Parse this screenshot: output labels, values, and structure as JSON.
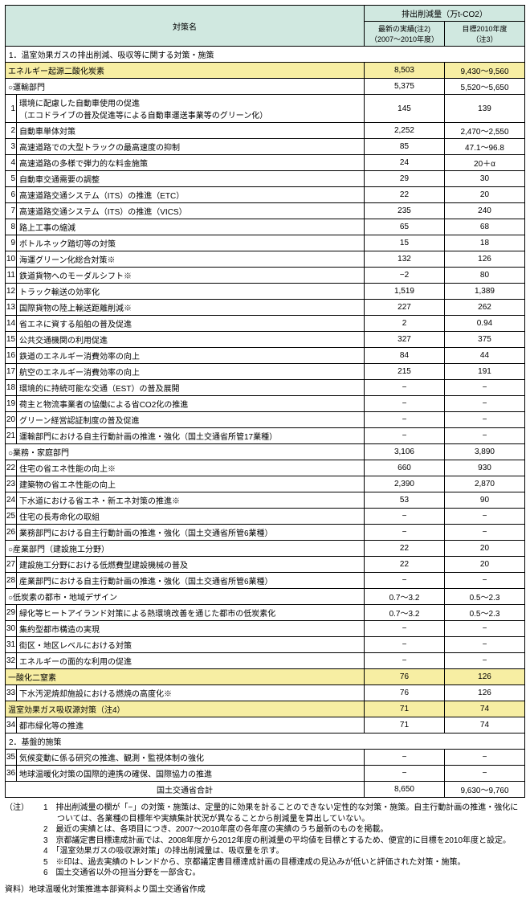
{
  "header": {
    "name_col": "対策名",
    "value_group": "排出削減量（万t-CO2）",
    "col_recent": "最新の実績(注2)\n（2007～2010年度）",
    "col_target": "目標2010年度\n（注3）"
  },
  "section1": "1．温室効果ガスの排出削減、吸収等に関する対策・施策",
  "groups": [
    {
      "type": "hl",
      "name": "エネルギー起源二酸化炭素",
      "recent": "8,503",
      "target": "9,430～9,560"
    },
    {
      "type": "sub",
      "name": "○運輸部門",
      "recent": "5,375",
      "target": "5,520～5,650"
    },
    {
      "num": "1",
      "name": "環境に配慮した自動車使用の促進\n（エコドライブの普及促進等による自動車運送事業等のグリーン化）",
      "recent": "145",
      "target": "139"
    },
    {
      "num": "2",
      "name": "自動車単体対策",
      "recent": "2,252",
      "target": "2,470～2,550"
    },
    {
      "num": "3",
      "name": "高速道路での大型トラックの最高速度の抑制",
      "recent": "85",
      "target": "47.1～96.8"
    },
    {
      "num": "4",
      "name": "高速道路の多様で弾力的な料金施策",
      "recent": "24",
      "target": "20＋α"
    },
    {
      "num": "5",
      "name": "自動車交通需要の調整",
      "recent": "29",
      "target": "30"
    },
    {
      "num": "6",
      "name": "高速道路交通システム（ITS）の推進（ETC）",
      "recent": "22",
      "target": "20"
    },
    {
      "num": "7",
      "name": "高速道路交通システム（ITS）の推進（VICS）",
      "recent": "235",
      "target": "240"
    },
    {
      "num": "8",
      "name": "路上工事の縮減",
      "recent": "65",
      "target": "68"
    },
    {
      "num": "9",
      "name": "ボトルネック踏切等の対策",
      "recent": "15",
      "target": "18"
    },
    {
      "num": "10",
      "name": "海運グリーン化総合対策※",
      "recent": "132",
      "target": "126"
    },
    {
      "num": "11",
      "name": "鉄道貨物へのモーダルシフト※",
      "recent": "−2",
      "target": "80"
    },
    {
      "num": "12",
      "name": "トラック輸送の効率化",
      "recent": "1,519",
      "target": "1,389"
    },
    {
      "num": "13",
      "name": "国際貨物の陸上輸送距離削減※",
      "recent": "227",
      "target": "262"
    },
    {
      "num": "14",
      "name": "省エネに資する船舶の普及促進",
      "recent": "2",
      "target": "0.94"
    },
    {
      "num": "15",
      "name": "公共交通機関の利用促進",
      "recent": "327",
      "target": "375"
    },
    {
      "num": "16",
      "name": "鉄道のエネルギー消費効率の向上",
      "recent": "84",
      "target": "44"
    },
    {
      "num": "17",
      "name": "航空のエネルギー消費効率の向上",
      "recent": "215",
      "target": "191"
    },
    {
      "num": "18",
      "name": "環境的に持続可能な交通（EST）の普及展開",
      "recent": "−",
      "target": "−"
    },
    {
      "num": "19",
      "name": "荷主と物流事業者の協働による省CO2化の推進",
      "recent": "−",
      "target": "−"
    },
    {
      "num": "20",
      "name": "グリーン経営認証制度の普及促進",
      "recent": "−",
      "target": "−"
    },
    {
      "num": "21",
      "name": "運輸部門における自主行動計画の推進・強化（国土交通省所管17業種）",
      "recent": "−",
      "target": "−"
    },
    {
      "type": "sub",
      "name": "○業務・家庭部門",
      "recent": "3,106",
      "target": "3,890"
    },
    {
      "num": "22",
      "name": "住宅の省エネ性能の向上※",
      "recent": "660",
      "target": "930"
    },
    {
      "num": "23",
      "name": "建築物の省エネ性能の向上",
      "recent": "2,390",
      "target": "2,870"
    },
    {
      "num": "24",
      "name": "下水道における省エネ・新エネ対策の推進※",
      "recent": "53",
      "target": "90"
    },
    {
      "num": "25",
      "name": "住宅の長寿命化の取組",
      "recent": "−",
      "target": "−"
    },
    {
      "num": "26",
      "name": "業務部門における自主行動計画の推進・強化（国土交通省所管6業種）",
      "recent": "−",
      "target": "−"
    },
    {
      "type": "sub",
      "name": "○産業部門（建設施工分野）",
      "recent": "22",
      "target": "20"
    },
    {
      "num": "27",
      "name": "建設施工分野における低燃費型建設機械の普及",
      "recent": "22",
      "target": "20"
    },
    {
      "num": "28",
      "name": "産業部門における自主行動計画の推進・強化（国土交通省所管6業種）",
      "recent": "−",
      "target": "−"
    },
    {
      "type": "sub",
      "name": "○低炭素の都市・地域デザイン",
      "recent": "0.7～3.2",
      "target": "0.5～2.3"
    },
    {
      "num": "29",
      "name": "緑化等ヒートアイランド対策による熱環境改善を通じた都市の低炭素化",
      "recent": "0.7～3.2",
      "target": "0.5～2.3"
    },
    {
      "num": "30",
      "name": "集約型都市構造の実現",
      "recent": "−",
      "target": "−"
    },
    {
      "num": "31",
      "name": "街区・地区レベルにおける対策",
      "recent": "−",
      "target": "−"
    },
    {
      "num": "32",
      "name": "エネルギーの面的な利用の促進",
      "recent": "−",
      "target": "−"
    },
    {
      "type": "hl",
      "name": "一酸化二窒素",
      "recent": "76",
      "target": "126"
    },
    {
      "num": "33",
      "name": "下水汚泥焼却施設における燃焼の高度化※",
      "recent": "76",
      "target": "126"
    },
    {
      "type": "hl",
      "name": "温室効果ガス吸収源対策（注4）",
      "recent": "71",
      "target": "74"
    },
    {
      "num": "34",
      "name": "都市緑化等の推進",
      "recent": "71",
      "target": "74"
    }
  ],
  "section2": "2．基盤的施策",
  "rows2": [
    {
      "num": "35",
      "name": "気候変動に係る研究の推進、観測・監視体制の強化",
      "recent": "−",
      "target": "−"
    },
    {
      "num": "36",
      "name": "地球温暖化対策の国際的連携の確保、国際協力の推進",
      "recent": "−",
      "target": "−"
    }
  ],
  "total": {
    "name": "国土交通省合計",
    "recent": "8,650",
    "target": "9,630～9,760"
  },
  "notes_label": "（注）",
  "notes": [
    "1　排出削減量の欄が「−」の対策・施策は、定量的に効果を計ることのできない定性的な対策・施策。自主行動計画の推進・強化については、各業種の目標年や実績集計状況が異なることから削減量を算出していない。",
    "2　最近の実績とは、各項目につき、2007～2010年度の各年度の実績のうち最新のものを掲載。",
    "3　京都議定書目標達成計画では、2008年度から2012年度の削減量の平均値を目標とするため、便宜的に目標を2010年度と設定。",
    "4　「温室効果ガスの吸収源対策」の排出削減量は、吸収量を示す。",
    "5　※印は、過去実績のトレンドから、京都議定書目標達成計画の目標達成の見込みが低いと評価された対策・施策。",
    "6　国土交通省以外の担当分野を一部含む。"
  ],
  "source": "資料）地球温暖化対策推進本部資料より国土交通省作成"
}
